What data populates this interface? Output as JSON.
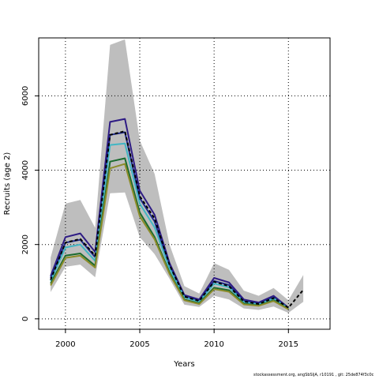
{
  "chart_data": {
    "type": "line",
    "xlabel": "Years",
    "ylabel": "Recruits (age 2)",
    "xlim": [
      1998.2,
      2017.8
    ],
    "ylim": [
      -280,
      7560
    ],
    "x_ticks": [
      2000,
      2005,
      2010,
      2015
    ],
    "y_ticks": [
      0,
      2000,
      4000,
      6000
    ],
    "grid": "dotted",
    "band": {
      "x": [
        1999,
        2000,
        2001,
        2002,
        2003,
        2004,
        2005,
        2006,
        2007,
        2008,
        2009,
        2010,
        2011,
        2012,
        2013,
        2014,
        2015,
        2016
      ],
      "upper": [
        1650,
        3100,
        3200,
        2450,
        7370,
        7520,
        4800,
        3900,
        2000,
        880,
        680,
        1500,
        1320,
        760,
        620,
        830,
        500,
        1180
      ],
      "lower": [
        720,
        1400,
        1460,
        1120,
        3380,
        3400,
        2200,
        1740,
        1080,
        380,
        320,
        620,
        520,
        280,
        240,
        330,
        160,
        460
      ],
      "color": "#bebebe"
    },
    "series": [
      {
        "color": "#2e1b84",
        "dashed": false,
        "x": [
          1999,
          2000,
          2001,
          2002,
          2003,
          2004,
          2005,
          2006,
          2007,
          2008,
          2009,
          2010,
          2011,
          2012,
          2013,
          2014,
          2015
        ],
        "values": [
          1150,
          2200,
          2300,
          1800,
          5300,
          5380,
          3450,
          2800,
          1500,
          640,
          520,
          1100,
          980,
          520,
          440,
          620,
          300
        ]
      },
      {
        "color": "#1f2a8c",
        "dashed": false,
        "x": [
          1999,
          2000,
          2001,
          2002,
          2003,
          2004,
          2005,
          2006,
          2007,
          2008,
          2009,
          2010,
          2011,
          2012,
          2013,
          2014,
          2015
        ],
        "values": [
          1100,
          2050,
          2130,
          1660,
          4950,
          5020,
          3250,
          2620,
          1430,
          610,
          490,
          1020,
          910,
          480,
          410,
          580,
          290
        ]
      },
      {
        "color": "#41b6c4",
        "dashed": false,
        "x": [
          1999,
          2000,
          2001,
          2002,
          2003,
          2004,
          2005,
          2006,
          2007,
          2008,
          2009,
          2010,
          2011,
          2012,
          2013,
          2014,
          2015
        ],
        "values": [
          1020,
          1920,
          2000,
          1560,
          4680,
          4720,
          3100,
          2460,
          1360,
          580,
          460,
          950,
          850,
          450,
          390,
          550,
          280
        ]
      },
      {
        "color": "#1b6b2f",
        "dashed": false,
        "x": [
          1999,
          2000,
          2001,
          2002,
          2003,
          2004,
          2005,
          2006,
          2007,
          2008,
          2009,
          2010,
          2011,
          2012,
          2013,
          2014,
          2015
        ],
        "values": [
          950,
          1700,
          1760,
          1430,
          4230,
          4320,
          2860,
          2200,
          1250,
          520,
          420,
          840,
          770,
          410,
          360,
          500,
          270
        ]
      },
      {
        "color": "#8c8c2a",
        "dashed": false,
        "x": [
          1999,
          2000,
          2001,
          2002,
          2003,
          2004,
          2005,
          2006,
          2007,
          2008,
          2009,
          2010,
          2011,
          2012,
          2013,
          2014,
          2015
        ],
        "values": [
          900,
          1640,
          1700,
          1380,
          4050,
          4170,
          2760,
          2140,
          1210,
          500,
          400,
          800,
          730,
          390,
          350,
          480,
          260
        ]
      },
      {
        "color": "#000000",
        "dashed": true,
        "x": [
          1999,
          2000,
          2001,
          2002,
          2003,
          2004,
          2005,
          2006,
          2007,
          2008,
          2009,
          2010,
          2011,
          2012,
          2013,
          2014,
          2015,
          2016
        ],
        "values": [
          1050,
          2050,
          2150,
          1700,
          4950,
          5050,
          3300,
          2700,
          1450,
          600,
          480,
          1000,
          880,
          470,
          400,
          560,
          300,
          780
        ]
      }
    ]
  },
  "footer": "stockassessment.org, angSbSljA, r10191 , git: 25de874f3c0c"
}
